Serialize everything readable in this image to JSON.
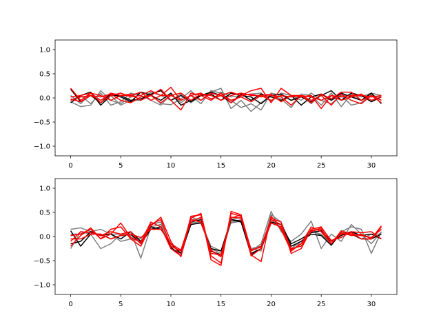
{
  "chart_data": [
    {
      "type": "line",
      "xlim": [
        -1.55,
        32.55
      ],
      "ylim": [
        -1.2,
        1.2
      ],
      "xticks": [
        0,
        5,
        10,
        15,
        20,
        25,
        30
      ],
      "xtick_labels": [
        "0",
        "5",
        "10",
        "15",
        "20",
        "25",
        "30"
      ],
      "yticks": [
        -1.0,
        -0.5,
        0.0,
        0.5,
        1.0
      ],
      "ytick_labels": [
        "−1.0",
        "−0.5",
        "0.0",
        "0.5",
        "1.0"
      ],
      "grid": false,
      "x": [
        0,
        1,
        2,
        3,
        4,
        5,
        6,
        7,
        8,
        9,
        10,
        11,
        12,
        13,
        14,
        15,
        16,
        17,
        18,
        19,
        20,
        21,
        22,
        23,
        24,
        25,
        26,
        27,
        28,
        29,
        30,
        31
      ],
      "series": [
        {
          "color": "#7f7f7f",
          "values": [
            -0.08,
            -0.18,
            -0.15,
            0.15,
            -0.05,
            -0.12,
            0.02,
            0.12,
            0.08,
            -0.12,
            -0.14,
            -0.02,
            0.15,
            -0.05,
            0.12,
            0.2,
            -0.22,
            -0.05,
            -0.28,
            -0.1,
            0.05,
            -0.02,
            -0.2,
            0.08,
            0.05,
            -0.15,
            0.1,
            -0.18,
            0.08,
            0.02,
            0.1,
            0.05
          ]
        },
        {
          "color": "#7f7f7f",
          "values": [
            -0.05,
            0.05,
            -0.12,
            0.1,
            -0.15,
            -0.08,
            0.1,
            0.05,
            -0.05,
            -0.15,
            0.08,
            -0.1,
            0.05,
            -0.12,
            0.15,
            0.1,
            -0.05,
            -0.2,
            -0.12,
            -0.25,
            0.1,
            0.05,
            -0.05,
            0.05,
            -0.12,
            0.08,
            -0.05,
            0.05,
            -0.15,
            -0.1,
            0.08,
            -0.05
          ]
        },
        {
          "color": "#7f7f7f",
          "values": [
            0.05,
            -0.12,
            0.1,
            -0.05,
            0.05,
            -0.15,
            -0.05,
            -0.05,
            0.12,
            0.05,
            -0.05,
            0.08,
            -0.1,
            0.05,
            -0.05,
            0.12,
            0.02,
            0.05,
            0.08,
            0.1,
            -0.08,
            0.1,
            0.05,
            -0.05,
            0.1,
            -0.05,
            -0.12,
            0.05,
            0.05,
            -0.05,
            0.05,
            0.02
          ]
        },
        {
          "color": "#000000",
          "values": [
            0.18,
            -0.08,
            0.05,
            -0.1,
            0.08,
            0.02,
            -0.08,
            0.12,
            0.05,
            -0.05,
            0.1,
            -0.15,
            -0.05,
            0.05,
            0.08,
            -0.05,
            0.1,
            0.05,
            0.02,
            -0.12,
            0.05,
            0.08,
            -0.05,
            0.02,
            -0.08,
            0.05,
            0.15,
            -0.05,
            0.1,
            0.05,
            -0.08,
            0.02
          ]
        },
        {
          "color": "#000000",
          "values": [
            -0.1,
            0.05,
            0.12,
            -0.15,
            0.05,
            0.05,
            -0.05,
            -0.02,
            0.08,
            0.15,
            -0.05,
            0.05,
            -0.08,
            0.05,
            0.12,
            0.05,
            -0.1,
            0.08,
            -0.05,
            0.08,
            0.02,
            -0.05,
            0.05,
            -0.15,
            0.02,
            0.08,
            -0.05,
            0.1,
            0.02,
            -0.05,
            0.1,
            -0.12
          ]
        },
        {
          "color": "#ff0000",
          "values": [
            0.2,
            -0.05,
            0.1,
            -0.1,
            0.05,
            0.1,
            0.02,
            0.05,
            0.15,
            0.05,
            0.22,
            -0.05,
            0.05,
            0.1,
            -0.02,
            0.05,
            0.12,
            0.05,
            0.15,
            0.2,
            -0.1,
            0.2,
            0.05,
            0.05,
            -0.1,
            0.08,
            -0.02,
            0.12,
            0.12,
            -0.05,
            0.05,
            -0.1
          ]
        },
        {
          "color": "#ff0000",
          "values": [
            -0.05,
            0.02,
            0.05,
            -0.05,
            0.1,
            0.05,
            0.08,
            -0.05,
            0.05,
            0.18,
            -0.05,
            -0.25,
            0.1,
            0.05,
            -0.05,
            0.1,
            -0.1,
            0.05,
            0.08,
            0.02,
            0.05,
            0.02,
            -0.15,
            0.05,
            -0.05,
            0.05,
            -0.15,
            0.08,
            -0.05,
            -0.12,
            0.05,
            -0.05
          ]
        },
        {
          "color": "#ff0000",
          "values": [
            0.02,
            0.05,
            0.1,
            0.05,
            -0.05,
            0.05,
            0.05,
            0.12,
            -0.05,
            0.05,
            0.05,
            0.1,
            -0.05,
            0.08,
            0.05,
            -0.05,
            0.05,
            0.1,
            0.05,
            0.05,
            0.08,
            -0.08,
            0.05,
            0.02,
            0.05,
            -0.22,
            0.05,
            0.02,
            0.05,
            0.05,
            0.02,
            0.05
          ]
        },
        {
          "color": "#ff0000",
          "values": [
            -0.02,
            -0.08,
            0.05,
            0.02,
            0.08,
            -0.05,
            -0.1,
            0.02,
            0.05,
            -0.1,
            0.05,
            -0.05,
            0.05,
            -0.05,
            0.1,
            0.05,
            -0.05,
            0.02,
            -0.08,
            0.05,
            -0.05,
            0.05,
            0.02,
            0.05,
            0.02,
            -0.05,
            0.05,
            -0.05,
            0.02,
            0.08,
            -0.05,
            0.02
          ]
        }
      ]
    },
    {
      "type": "line",
      "xlim": [
        -1.55,
        32.55
      ],
      "ylim": [
        -1.2,
        1.2
      ],
      "xticks": [
        0,
        5,
        10,
        15,
        20,
        25,
        30
      ],
      "xtick_labels": [
        "0",
        "5",
        "10",
        "15",
        "20",
        "25",
        "30"
      ],
      "yticks": [
        -1.0,
        -0.5,
        0.0,
        0.5,
        1.0
      ],
      "ytick_labels": [
        "−1.0",
        "−0.5",
        "0.0",
        "0.5",
        "1.0"
      ],
      "grid": false,
      "x": [
        0,
        1,
        2,
        3,
        4,
        5,
        6,
        7,
        8,
        9,
        10,
        11,
        12,
        13,
        14,
        15,
        16,
        17,
        18,
        19,
        20,
        21,
        22,
        23,
        24,
        25,
        26,
        27,
        28,
        29,
        30,
        31
      ],
      "series": [
        {
          "color": "#7f7f7f",
          "values": [
            0.15,
            0.18,
            0.1,
            0.15,
            0.05,
            0.05,
            0.1,
            -0.45,
            0.2,
            0.25,
            -0.15,
            -0.35,
            0.42,
            0.3,
            -0.25,
            -0.35,
            0.35,
            0.4,
            -0.3,
            -0.15,
            0.52,
            0.1,
            -0.1,
            0.05,
            0.32,
            -0.25,
            0.05,
            -0.1,
            0.25,
            0.05,
            -0.15,
            0.1
          ]
        },
        {
          "color": "#7f7f7f",
          "values": [
            -0.25,
            0.1,
            0.05,
            -0.25,
            -0.15,
            0.05,
            0.02,
            -0.05,
            0.25,
            0.3,
            -0.2,
            -0.3,
            0.35,
            0.38,
            -0.3,
            -0.4,
            0.3,
            0.35,
            -0.25,
            -0.3,
            0.45,
            0.3,
            -0.2,
            -0.15,
            0.15,
            0.02,
            -0.1,
            0.05,
            0.1,
            -0.05,
            0.05,
            0.05
          ]
        },
        {
          "color": "#7f7f7f",
          "values": [
            0.05,
            0.05,
            0.1,
            0.02,
            0.05,
            -0.1,
            -0.05,
            -0.1,
            0.15,
            0.2,
            -0.25,
            -0.35,
            0.28,
            0.3,
            -0.2,
            -0.3,
            0.28,
            0.32,
            -0.25,
            -0.2,
            0.35,
            0.15,
            -0.25,
            -0.1,
            0.1,
            0.05,
            -0.15,
            0.1,
            0.2,
            0.15,
            -0.35,
            0.1
          ]
        },
        {
          "color": "#000000",
          "values": [
            0.12,
            -0.2,
            0.05,
            0.05,
            -0.05,
            0.02,
            0.05,
            -0.15,
            0.15,
            0.2,
            -0.22,
            -0.4,
            0.3,
            0.35,
            -0.3,
            -0.38,
            0.35,
            0.3,
            -0.35,
            -0.25,
            0.3,
            0.25,
            -0.15,
            -0.05,
            0.08,
            0.12,
            -0.1,
            0.02,
            0.1,
            0.02,
            0.05,
            -0.05
          ]
        },
        {
          "color": "#000000",
          "values": [
            -0.15,
            -0.1,
            0.1,
            0.02,
            0.05,
            -0.05,
            0.1,
            -0.1,
            0.2,
            0.15,
            -0.15,
            -0.35,
            0.25,
            0.28,
            -0.25,
            -0.3,
            0.35,
            0.32,
            -0.38,
            -0.25,
            0.28,
            0.2,
            -0.2,
            -0.1,
            0.05,
            0.02,
            -0.18,
            0.08,
            0.05,
            -0.05,
            -0.05,
            0.05
          ]
        },
        {
          "color": "#ff0000",
          "values": [
            0.02,
            0.05,
            0.15,
            -0.05,
            0.05,
            0.28,
            -0.02,
            -0.12,
            0.3,
            0.2,
            -0.25,
            -0.4,
            0.42,
            0.45,
            -0.48,
            -0.6,
            0.52,
            0.45,
            -0.4,
            -0.25,
            0.38,
            0.3,
            -0.35,
            -0.25,
            0.15,
            0.2,
            -0.1,
            0.05,
            0.08,
            -0.05,
            -0.05,
            0.2
          ]
        },
        {
          "color": "#ff0000",
          "values": [
            -0.2,
            0.02,
            0.18,
            -0.05,
            0.15,
            0.2,
            -0.05,
            -0.2,
            0.22,
            0.4,
            -0.1,
            -0.42,
            0.38,
            0.48,
            -0.4,
            -0.55,
            0.48,
            0.42,
            -0.38,
            -0.52,
            0.42,
            0.15,
            -0.3,
            -0.15,
            0.2,
            0.1,
            -0.15,
            0.08,
            0.02,
            0.05,
            -0.05,
            0.22
          ]
        },
        {
          "color": "#ff0000",
          "values": [
            -0.1,
            0.1,
            0.08,
            0.02,
            0.1,
            0.05,
            0.1,
            -0.15,
            0.25,
            0.35,
            -0.2,
            -0.3,
            0.3,
            0.4,
            -0.35,
            -0.38,
            0.4,
            0.38,
            -0.3,
            -0.2,
            0.35,
            0.25,
            -0.25,
            -0.2,
            0.12,
            0.15,
            -0.15,
            0.12,
            0.05,
            0.02,
            -0.02,
            0.15
          ]
        },
        {
          "color": "#ff0000",
          "values": [
            -0.05,
            -0.05,
            0.05,
            0.05,
            -0.05,
            0.02,
            0.05,
            -0.02,
            0.15,
            0.15,
            -0.15,
            -0.28,
            0.35,
            0.3,
            -0.28,
            -0.42,
            0.38,
            0.45,
            -0.28,
            -0.22,
            0.28,
            0.2,
            -0.28,
            -0.15,
            0.1,
            0.18,
            -0.08,
            -0.02,
            0.1,
            0.08,
            0.1,
            -0.05
          ]
        }
      ]
    }
  ]
}
